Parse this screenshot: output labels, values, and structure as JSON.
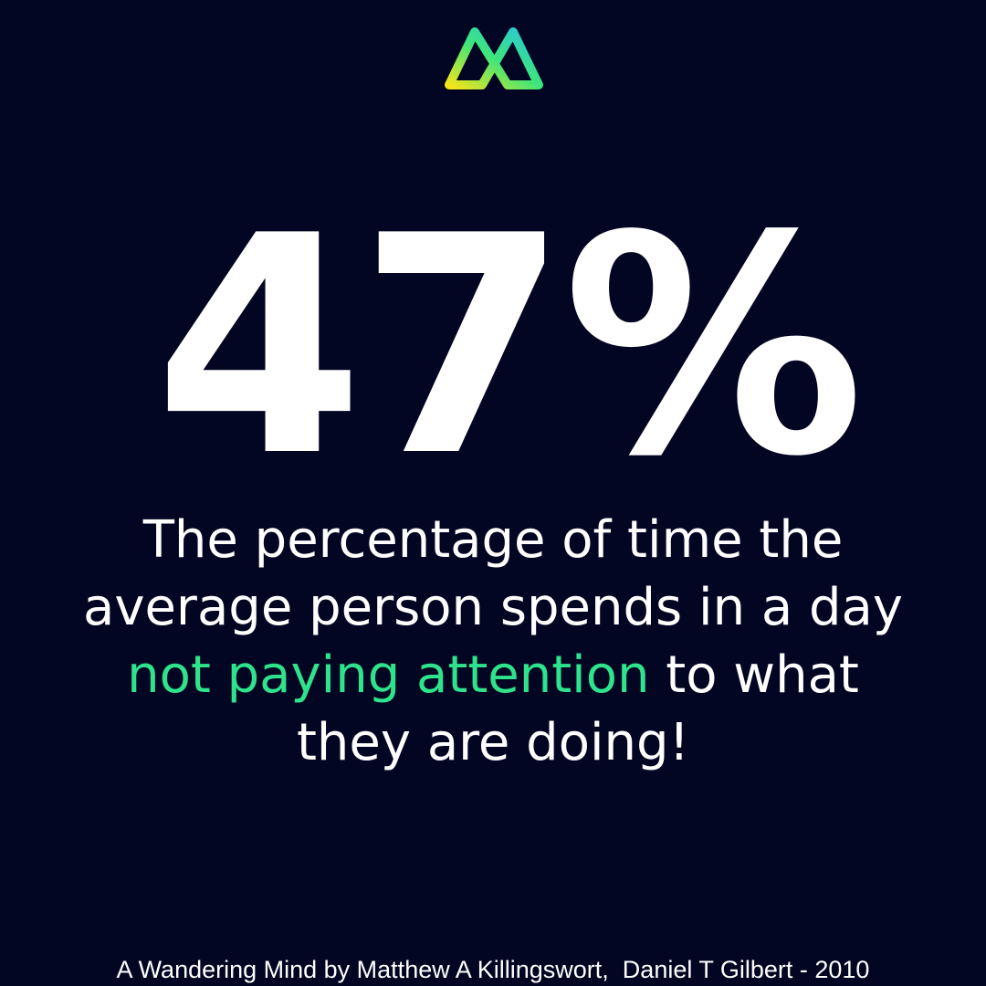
{
  "logo": {
    "name": "logo-mark",
    "gradient": [
      "#f2e51a",
      "#3ee57a",
      "#27c6e0"
    ]
  },
  "headline": "47%",
  "description": {
    "line1": "The percentage of time the",
    "line2": "average person spends in a day",
    "highlight": "not paying attention",
    "line3_rest": " to what",
    "line4": "they are doing!"
  },
  "credit": "A Wandering Mind by Matthew A Killingswort,  Daniel T Gilbert - 2010",
  "colors": {
    "background": "#020622",
    "highlight": "#2ee38b",
    "text": "#ffffff"
  }
}
